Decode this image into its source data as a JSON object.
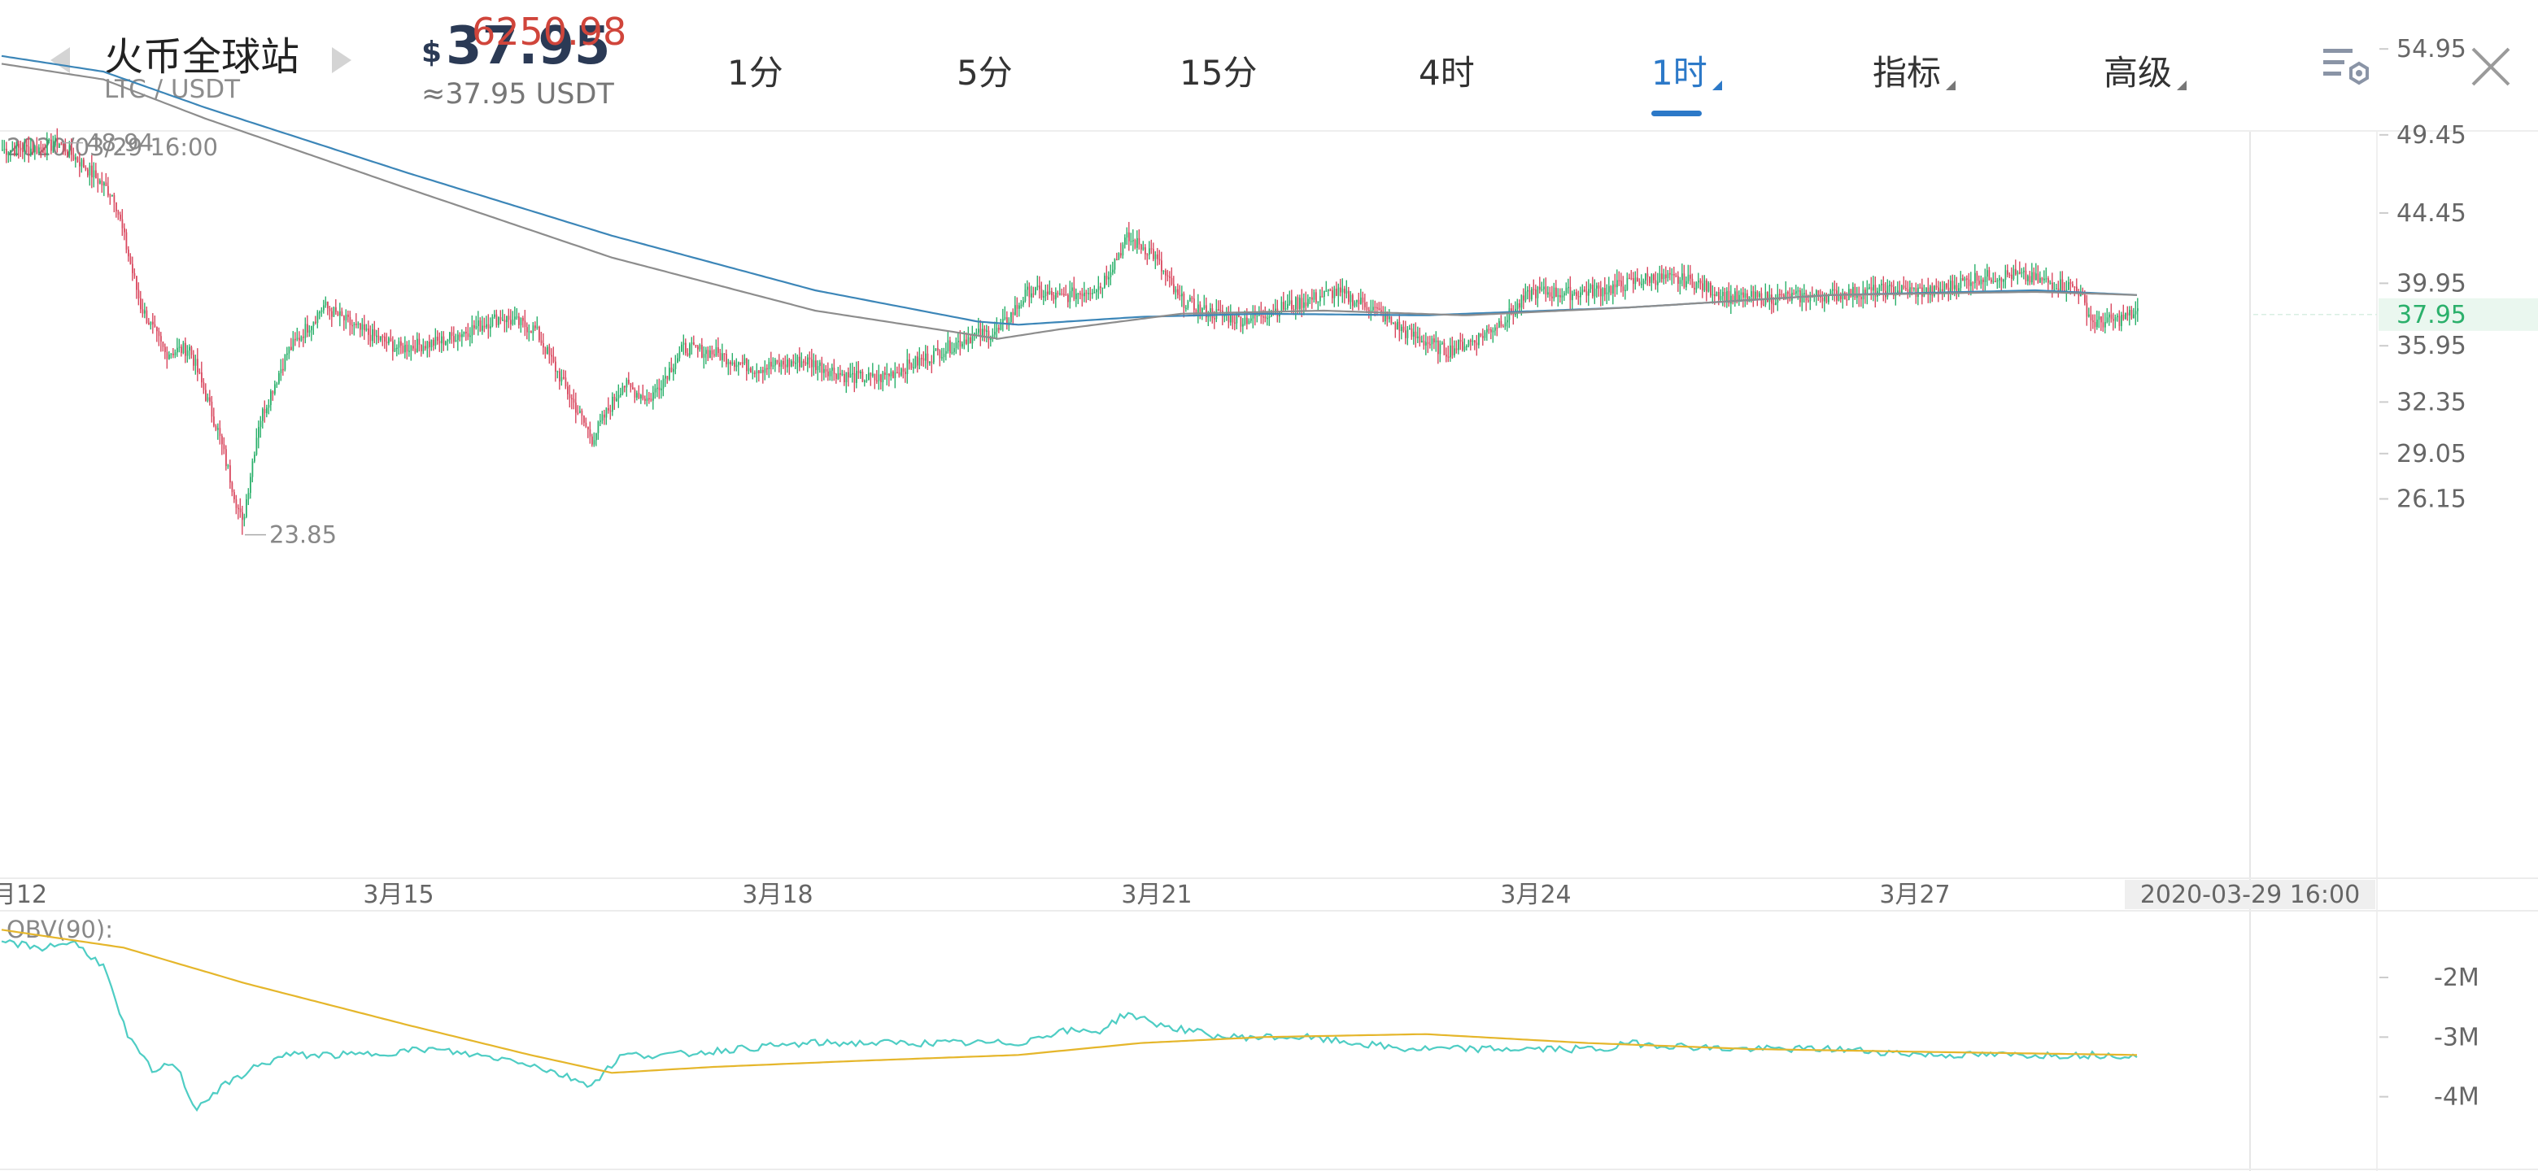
{
  "header": {
    "exchange": "火币全球站",
    "pair": "LTC / USDT",
    "currency_symbol": "$",
    "price": "37.95",
    "btc_price": "6250.98",
    "approx_price": "≈37.95 USDT",
    "tabs": [
      {
        "label": "1分",
        "active": false,
        "dropdown": false
      },
      {
        "label": "5分",
        "active": false,
        "dropdown": false
      },
      {
        "label": "15分",
        "active": false,
        "dropdown": false
      },
      {
        "label": "4时",
        "active": false,
        "dropdown": false
      },
      {
        "label": "1时",
        "active": true,
        "dropdown": true
      },
      {
        "label": "指标",
        "active": false,
        "dropdown": true
      },
      {
        "label": "高级",
        "active": false,
        "dropdown": true
      }
    ],
    "icons": [
      "chevron-left-icon",
      "chevron-right-icon",
      "chart-settings-icon",
      "close-icon"
    ]
  },
  "chart_data": [
    {
      "type": "candlestick",
      "timestamp_top": "2020/03/29 16:00",
      "x_tick_labels": [
        "月12",
        "3月15",
        "3月18",
        "3月21",
        "3月24",
        "3月27"
      ],
      "x_end_label": "2020-03-29 16:00",
      "y_tick_labels": [
        "54.95",
        "49.45",
        "44.45",
        "39.95",
        "35.95",
        "32.35",
        "29.05",
        "26.15"
      ],
      "ylim": [
        23.0,
        57.0
      ],
      "current_price": "37.95",
      "high_marker": {
        "label": "48.94",
        "value": 48.94
      },
      "low_marker": {
        "label": "23.85",
        "value": 23.85
      },
      "colors": {
        "up": "#2bb06b",
        "down": "#d9485f",
        "ma_long": "#3c86b8",
        "ma_short": "#8d8d8d",
        "current": "#2bb06b"
      },
      "hourly_close_keypoints": [
        [
          0,
          48.5
        ],
        [
          20,
          48.6
        ],
        [
          28,
          48.94
        ],
        [
          40,
          47.5
        ],
        [
          55,
          45.5
        ],
        [
          68,
          38.5
        ],
        [
          80,
          35.5
        ],
        [
          92,
          35.8
        ],
        [
          106,
          30.5
        ],
        [
          118,
          24.5
        ],
        [
          126,
          31.0
        ],
        [
          140,
          35.5
        ],
        [
          158,
          38.5
        ],
        [
          175,
          37.0
        ],
        [
          195,
          35.8
        ],
        [
          215,
          36.2
        ],
        [
          245,
          37.8
        ],
        [
          262,
          37.0
        ],
        [
          278,
          33.0
        ],
        [
          290,
          30.0
        ],
        [
          305,
          33.5
        ],
        [
          318,
          32.5
        ],
        [
          335,
          35.8
        ],
        [
          350,
          35.5
        ],
        [
          370,
          34.5
        ],
        [
          395,
          35.0
        ],
        [
          415,
          34.0
        ],
        [
          430,
          33.8
        ],
        [
          455,
          35.2
        ],
        [
          475,
          36.5
        ],
        [
          490,
          36.9
        ],
        [
          505,
          39.5
        ],
        [
          520,
          39.0
        ],
        [
          540,
          39.8
        ],
        [
          553,
          42.8
        ],
        [
          565,
          42.0
        ],
        [
          578,
          39.0
        ],
        [
          590,
          38.2
        ],
        [
          610,
          37.6
        ],
        [
          635,
          38.6
        ],
        [
          655,
          39.4
        ],
        [
          672,
          38.5
        ],
        [
          690,
          36.8
        ],
        [
          710,
          35.6
        ],
        [
          725,
          36.4
        ],
        [
          740,
          37.8
        ],
        [
          752,
          39.4
        ],
        [
          770,
          39.3
        ],
        [
          790,
          39.6
        ],
        [
          810,
          40.3
        ],
        [
          830,
          40.1
        ],
        [
          850,
          39.0
        ],
        [
          870,
          39.0
        ],
        [
          900,
          39.2
        ],
        [
          925,
          39.5
        ],
        [
          950,
          39.4
        ],
        [
          970,
          40.3
        ],
        [
          988,
          40.5
        ],
        [
          1010,
          39.9
        ],
        [
          1020,
          39.7
        ],
        [
          1028,
          37.4
        ],
        [
          1040,
          37.6
        ],
        [
          1050,
          38.1
        ]
      ],
      "ma_long_keypoints": [
        [
          0,
          54.5
        ],
        [
          50,
          53.5
        ],
        [
          100,
          51.2
        ],
        [
          200,
          47.0
        ],
        [
          300,
          43.0
        ],
        [
          400,
          39.5
        ],
        [
          480,
          37.5
        ],
        [
          500,
          37.3
        ],
        [
          560,
          37.8
        ],
        [
          620,
          38.0
        ],
        [
          700,
          37.9
        ],
        [
          800,
          38.4
        ],
        [
          900,
          39.2
        ],
        [
          1000,
          39.5
        ],
        [
          1050,
          39.2
        ]
      ],
      "ma_short_keypoints": [
        [
          0,
          54.0
        ],
        [
          50,
          53.0
        ],
        [
          100,
          50.5
        ],
        [
          200,
          46.0
        ],
        [
          300,
          41.6
        ],
        [
          400,
          38.2
        ],
        [
          490,
          36.4
        ],
        [
          520,
          37.0
        ],
        [
          580,
          38.0
        ],
        [
          650,
          38.2
        ],
        [
          720,
          37.9
        ],
        [
          800,
          38.4
        ],
        [
          900,
          39.2
        ],
        [
          1000,
          39.4
        ],
        [
          1050,
          39.2
        ]
      ]
    },
    {
      "type": "line",
      "title": "OBV(90):",
      "y_tick_labels": [
        "-2M",
        "-3M",
        "-4M"
      ],
      "ylim": [
        -4.9,
        -1.0
      ],
      "series": [
        {
          "color": "#4ecdc4",
          "points": [
            [
              0,
              -1.4
            ],
            [
              20,
              -1.5
            ],
            [
              35,
              -1.4
            ],
            [
              50,
              -1.8
            ],
            [
              62,
              -3.0
            ],
            [
              75,
              -3.6
            ],
            [
              85,
              -3.4
            ],
            [
              95,
              -4.2
            ],
            [
              110,
              -3.8
            ],
            [
              125,
              -3.5
            ],
            [
              140,
              -3.3
            ],
            [
              175,
              -3.3
            ],
            [
              210,
              -3.2
            ],
            [
              255,
              -3.4
            ],
            [
              290,
              -3.8
            ],
            [
              305,
              -3.3
            ],
            [
              330,
              -3.3
            ],
            [
              360,
              -3.2
            ],
            [
              400,
              -3.1
            ],
            [
              450,
              -3.1
            ],
            [
              500,
              -3.1
            ],
            [
              520,
              -2.9
            ],
            [
              540,
              -2.9
            ],
            [
              553,
              -2.6
            ],
            [
              570,
              -2.8
            ],
            [
              600,
              -3.0
            ],
            [
              640,
              -3.0
            ],
            [
              690,
              -3.2
            ],
            [
              740,
              -3.2
            ],
            [
              790,
              -3.2
            ],
            [
              800,
              -3.1
            ],
            [
              850,
              -3.2
            ],
            [
              900,
              -3.2
            ],
            [
              950,
              -3.3
            ],
            [
              1000,
              -3.3
            ],
            [
              1030,
              -3.3
            ],
            [
              1050,
              -3.3
            ]
          ]
        },
        {
          "color": "#e5b62b",
          "points": [
            [
              0,
              -1.2
            ],
            [
              60,
              -1.5
            ],
            [
              120,
              -2.1
            ],
            [
              200,
              -2.8
            ],
            [
              260,
              -3.3
            ],
            [
              300,
              -3.6
            ],
            [
              350,
              -3.5
            ],
            [
              420,
              -3.4
            ],
            [
              500,
              -3.3
            ],
            [
              560,
              -3.1
            ],
            [
              620,
              -3.0
            ],
            [
              700,
              -2.95
            ],
            [
              780,
              -3.1
            ],
            [
              860,
              -3.2
            ],
            [
              950,
              -3.25
            ],
            [
              1050,
              -3.3
            ]
          ]
        }
      ]
    }
  ]
}
